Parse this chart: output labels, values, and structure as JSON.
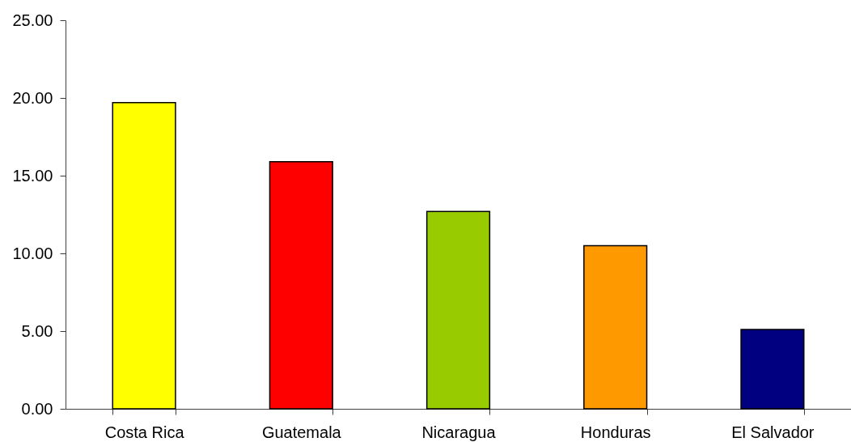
{
  "chart_data": {
    "type": "bar",
    "categories": [
      "Costa Rica",
      "Guatemala",
      "Nicaragua",
      "Honduras",
      "El Salvador"
    ],
    "values": [
      19.7,
      15.9,
      12.7,
      10.5,
      5.1
    ],
    "colors": [
      "#ffff00",
      "#ff0000",
      "#99cc00",
      "#ff9900",
      "#000080"
    ],
    "ylim": [
      0,
      25
    ],
    "yticks": [
      {
        "value": 0,
        "label": "0.00"
      },
      {
        "value": 5,
        "label": "5.00"
      },
      {
        "value": 10,
        "label": "10.00"
      },
      {
        "value": 15,
        "label": "15.00"
      },
      {
        "value": 20,
        "label": "20.00"
      },
      {
        "value": 25,
        "label": "25.00"
      }
    ]
  }
}
